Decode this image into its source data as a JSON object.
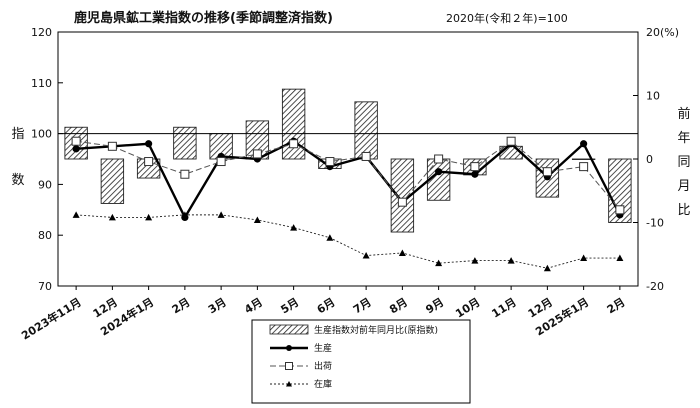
{
  "chart_data": {
    "type": "bar+line",
    "title": "鹿児島県鉱工業指数の推移(季節調整済指数)",
    "subtitle": "2020年(令和２年)=100",
    "ylabel_left": "指数",
    "ylabel_right": "前年同月比",
    "y_left": {
      "min": 70,
      "max": 120,
      "ticks": [
        70,
        80,
        90,
        100,
        110,
        120
      ]
    },
    "y_right": {
      "min": -20,
      "max": 20,
      "ticks": [
        "-20",
        "-10",
        "0",
        "10",
        "20(%)"
      ]
    },
    "reference_line": 100,
    "categories": [
      "2023年11月",
      "12月",
      "2024年1月",
      "2月",
      "3月",
      "4月",
      "5月",
      "6月",
      "7月",
      "8月",
      "9月",
      "10月",
      "11月",
      "12月",
      "2025年1月",
      "2月"
    ],
    "series": [
      {
        "name": "生産指数対前年同月比(原指数)",
        "type": "bar",
        "axis": "right",
        "values": [
          5.0,
          -7.0,
          -3.0,
          5.0,
          4.0,
          6.0,
          11.0,
          -1.5,
          9.0,
          -11.5,
          -6.5,
          -2.5,
          2.0,
          -6.0,
          0.0,
          -10.0
        ]
      },
      {
        "name": "生産",
        "type": "line",
        "axis": "left",
        "marker": "filled-circle",
        "values": [
          97.0,
          97.5,
          98.0,
          83.5,
          95.5,
          95.0,
          98.5,
          93.5,
          95.5,
          86.5,
          92.5,
          92.0,
          98.0,
          91.5,
          98.0,
          84.0
        ]
      },
      {
        "name": "出荷",
        "type": "line",
        "axis": "left",
        "marker": "open-square",
        "dash": true,
        "values": [
          98.5,
          97.5,
          94.5,
          92.0,
          94.5,
          96.0,
          98.0,
          94.5,
          95.5,
          86.5,
          95.0,
          93.5,
          98.5,
          92.5,
          93.5,
          85.0
        ]
      },
      {
        "name": "在庫",
        "type": "line",
        "axis": "left",
        "marker": "filled-triangle",
        "dash": "dotted",
        "values": [
          84.0,
          83.5,
          83.5,
          84.0,
          84.0,
          83.0,
          81.5,
          79.5,
          76.0,
          76.5,
          74.5,
          75.0,
          75.0,
          73.5,
          75.5,
          75.5
        ]
      }
    ]
  }
}
